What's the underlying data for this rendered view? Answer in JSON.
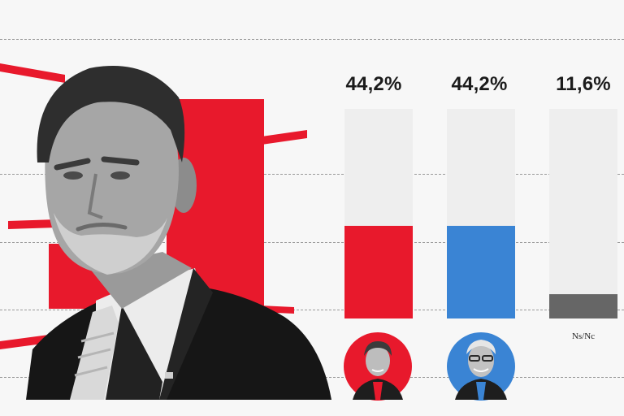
{
  "chart_data": {
    "type": "bar",
    "categories": [
      "",
      "",
      "Ns/Nc"
    ],
    "values": [
      44.2,
      44.2,
      11.6
    ],
    "value_labels": [
      "44,2%",
      "44,2%",
      "11,6%"
    ],
    "series_colors": [
      "#e8192c",
      "#3a84d4",
      "#666666"
    ],
    "track_color": "#eeeeee",
    "ylim": [
      0,
      100
    ],
    "title": "",
    "xlabel": "",
    "ylabel": "",
    "grid": true
  },
  "decor": {
    "accent_red": "#e8192c",
    "accent_blue": "#3a84d4",
    "photo_subject_icon": "portrait-icon",
    "avatar_icons": [
      "avatar-red-icon",
      "avatar-blue-icon"
    ]
  }
}
